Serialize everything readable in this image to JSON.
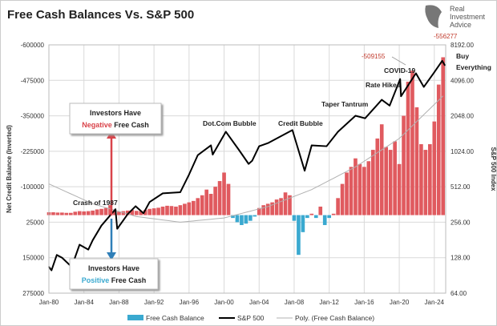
{
  "chart_data": {
    "type": "bar",
    "title": "Free Cash Balances Vs. S&P 500",
    "logo_text": [
      "Real",
      "Investment",
      "Advice"
    ],
    "ylabel": "Net Credit Balance (Inverted)",
    "y2label": "S&P 500 Index",
    "ylim": [
      -600000,
      275000
    ],
    "y_inverted": true,
    "y_ticks": [
      "-600000",
      "-475000",
      "-350000",
      "-225000",
      "-100000",
      "25000",
      "150000",
      "275000"
    ],
    "y2_scale": "log2",
    "y2lim": [
      64,
      8192
    ],
    "y2_ticks": [
      "8192.00",
      "4096.00",
      "2048.00",
      "1024.00",
      "512.00",
      "256.00",
      "128.00",
      "64.00"
    ],
    "x_ticks": [
      "Jan-80",
      "Jan-84",
      "Jan-88",
      "Jan-92",
      "Jan-96",
      "Jan-00",
      "Jan-04",
      "Jan-08",
      "Jan-12",
      "Jan-16",
      "Jan-20",
      "Jan-24"
    ],
    "xlim": [
      1980,
      2025.3
    ],
    "grid": true,
    "legend_position": "bottom",
    "legend": [
      "Free Cash Balance",
      "S&P 500",
      "Poly. (Free Cash Balance)"
    ],
    "colors": {
      "negative_free_cash": "#e05a5f",
      "positive_free_cash": "#3aa9d0",
      "sp500": "#000000",
      "poly": "#b0b0b0",
      "annotation_red": "#c0392b"
    },
    "free_cash_start": 1980,
    "free_cash_step_years": 0.5,
    "free_cash_balance": [
      -10000,
      -10000,
      -9000,
      -9000,
      -8000,
      -8000,
      -12000,
      -14000,
      -13000,
      -14000,
      -16000,
      -20000,
      -22000,
      -25000,
      -35000,
      -15000,
      -12000,
      -14000,
      -16000,
      -18000,
      -15000,
      -14000,
      -18000,
      -22000,
      -24000,
      -26000,
      -30000,
      -33000,
      -32000,
      -30000,
      -35000,
      -40000,
      -45000,
      -50000,
      -60000,
      -70000,
      -90000,
      -75000,
      -100000,
      -120000,
      -150000,
      -110000,
      10000,
      25000,
      35000,
      30000,
      20000,
      5000,
      -25000,
      -35000,
      -40000,
      -45000,
      -55000,
      -60000,
      -80000,
      -70000,
      20000,
      140000,
      60000,
      10000,
      -5000,
      10000,
      -30000,
      35000,
      10000,
      -5000,
      -60000,
      -110000,
      -150000,
      -170000,
      -200000,
      -180000,
      -170000,
      -190000,
      -230000,
      -270000,
      -320000,
      -240000,
      -230000,
      -260000,
      -180000,
      -350000,
      -470000,
      -509155,
      -380000,
      -250000,
      -230000,
      -250000,
      -330000,
      -460000,
      -556277
    ],
    "sp500": [
      [
        1980,
        107
      ],
      [
        1980.3,
        100
      ],
      [
        1980.9,
        135
      ],
      [
        1981.5,
        128
      ],
      [
        1982.6,
        107
      ],
      [
        1983.5,
        165
      ],
      [
        1984.5,
        150
      ],
      [
        1985,
        180
      ],
      [
        1986,
        240
      ],
      [
        1987.6,
        330
      ],
      [
        1987.8,
        225
      ],
      [
        1989,
        300
      ],
      [
        1989.9,
        350
      ],
      [
        1990.8,
        305
      ],
      [
        1991.5,
        380
      ],
      [
        1993,
        450
      ],
      [
        1995,
        460
      ],
      [
        1996,
        650
      ],
      [
        1997,
        950
      ],
      [
        1998.5,
        1150
      ],
      [
        1998.7,
        960
      ],
      [
        2000.2,
        1500
      ],
      [
        2001.7,
        1050
      ],
      [
        2002.8,
        800
      ],
      [
        2003.2,
        850
      ],
      [
        2004,
        1130
      ],
      [
        2005,
        1200
      ],
      [
        2007.8,
        1550
      ],
      [
        2009.2,
        700
      ],
      [
        2010,
        1150
      ],
      [
        2011.7,
        1130
      ],
      [
        2013,
        1500
      ],
      [
        2015,
        2050
      ],
      [
        2016.1,
        1950
      ],
      [
        2018,
        2800
      ],
      [
        2018.9,
        2500
      ],
      [
        2020.1,
        4200
      ],
      [
        2020.2,
        3000
      ],
      [
        2021.9,
        4700
      ],
      [
        2022.8,
        3600
      ],
      [
        2024,
        4800
      ],
      [
        2024.9,
        6000
      ],
      [
        2025.2,
        5500
      ]
    ],
    "poly_trend": [
      [
        1980,
        -110000
      ],
      [
        1985,
        -40000
      ],
      [
        1990,
        5000
      ],
      [
        1995,
        25000
      ],
      [
        2000,
        10000
      ],
      [
        2005,
        -30000
      ],
      [
        2010,
        -90000
      ],
      [
        2015,
        -170000
      ],
      [
        2020,
        -270000
      ],
      [
        2025,
        -420000
      ]
    ],
    "annotations": {
      "neg_box_line1": "Investors Have",
      "neg_box_word": "Negative",
      "neg_box_rest": " Free Cash",
      "pos_box_line1": "Investors Have",
      "pos_box_word": "Positive",
      "pos_box_rest": " Free Cash",
      "crash": "Crash of 1987",
      "dotcom": "Dot.Com Bubble",
      "credit": "Credit Bubble",
      "taper": "Taper Tantrum",
      "rate": "Rate Hikes",
      "covid": "COVID-19",
      "buy1": "Buy",
      "buy2": "Everything",
      "peak1": "-509155",
      "peak2": "-556277"
    }
  }
}
